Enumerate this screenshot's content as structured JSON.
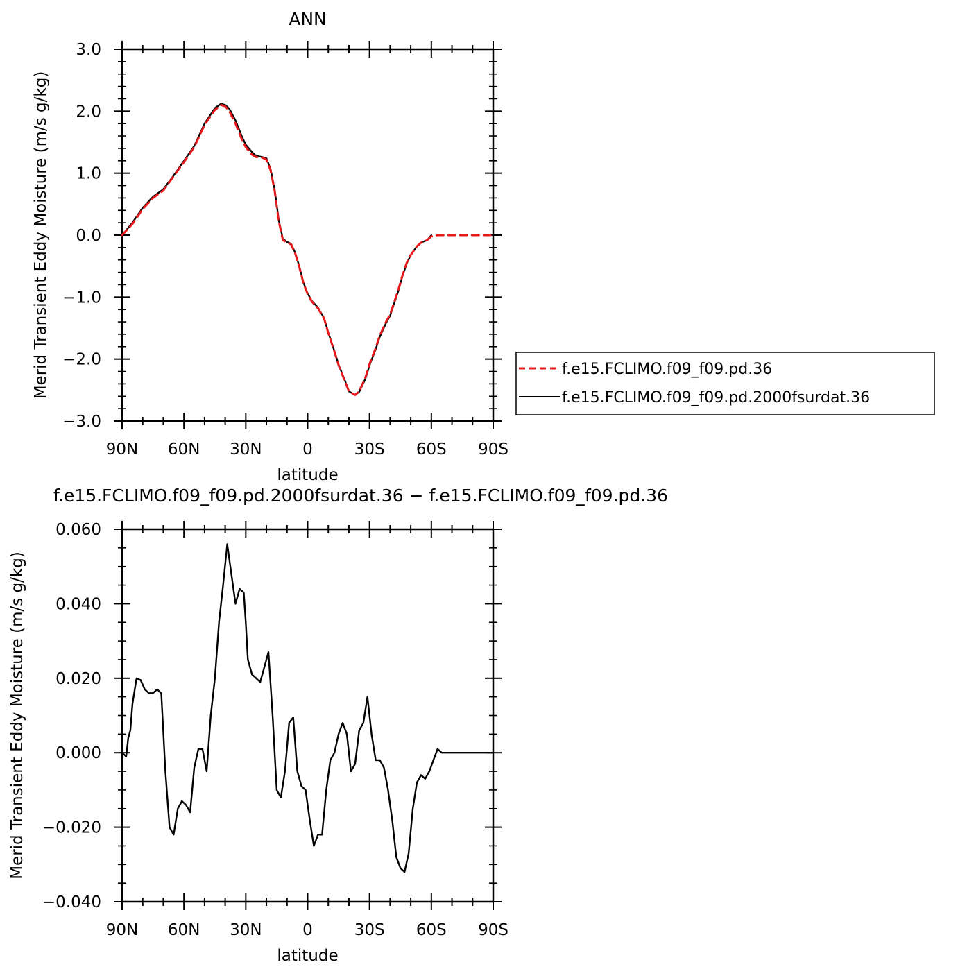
{
  "chart_data": [
    {
      "type": "line",
      "title": "ANN",
      "xlabel": "latitude",
      "ylabel": "Merid Transient Eddy Moisture (m/s g/kg)",
      "xlim": [
        90,
        -90
      ],
      "ylim": [
        -3.0,
        3.0
      ],
      "x_ticks": [
        90,
        60,
        30,
        0,
        -30,
        -60,
        -90
      ],
      "x_tick_labels": [
        "90N",
        "60N",
        "30N",
        "0",
        "30S",
        "60S",
        "90S"
      ],
      "y_ticks": [
        -3.0,
        -2.0,
        -1.0,
        0.0,
        1.0,
        2.0,
        3.0
      ],
      "y_tick_labels": [
        "−3.0",
        "−2.0",
        "−1.0",
        "0.0",
        "1.0",
        "2.0",
        "3.0"
      ],
      "grid": false,
      "legend_position": "right",
      "series": [
        {
          "name": "f.e15.FCLIMO.f09_f09.pd.36",
          "color": "#e8191c",
          "dash": "dashed",
          "x": [
            90,
            85,
            80,
            75,
            70,
            65,
            60,
            55,
            50,
            45,
            42,
            40,
            38,
            35,
            32,
            30,
            27,
            25,
            22,
            20,
            18,
            16,
            14,
            12,
            10,
            8,
            6,
            4,
            2,
            0,
            -2,
            -5,
            -8,
            -10,
            -13,
            -15,
            -18,
            -20,
            -23,
            -25,
            -28,
            -30,
            -33,
            -35,
            -38,
            -40,
            -42,
            -44,
            -46,
            -48,
            -50,
            -53,
            -55,
            -58,
            -60,
            -63,
            -65,
            -68,
            -70,
            -73,
            -75,
            -78,
            -80,
            -83,
            -85,
            -88,
            -90
          ],
          "values": [
            0.0,
            0.18,
            0.42,
            0.6,
            0.72,
            0.95,
            1.18,
            1.42,
            1.78,
            2.02,
            2.1,
            2.08,
            2.0,
            1.8,
            1.55,
            1.42,
            1.3,
            1.26,
            1.25,
            1.22,
            1.05,
            0.72,
            0.22,
            -0.08,
            -0.12,
            -0.15,
            -0.3,
            -0.52,
            -0.78,
            -0.95,
            -1.07,
            -1.18,
            -1.35,
            -1.58,
            -1.88,
            -2.1,
            -2.35,
            -2.52,
            -2.58,
            -2.52,
            -2.3,
            -2.08,
            -1.82,
            -1.62,
            -1.4,
            -1.28,
            -1.08,
            -0.88,
            -0.65,
            -0.45,
            -0.32,
            -0.18,
            -0.12,
            -0.08,
            -0.02,
            0.0,
            0.0,
            0.0,
            0.0,
            0.0,
            0.0,
            0.0,
            0.0,
            0.0,
            0.0,
            0.0,
            0.0
          ]
        },
        {
          "name": "f.e15.FCLIMO.f09_f09.pd.2000fsurdat.36",
          "color": "#000000",
          "dash": "solid",
          "x": [
            90,
            85,
            80,
            75,
            70,
            65,
            60,
            55,
            50,
            45,
            42,
            40,
            38,
            35,
            32,
            30,
            27,
            25,
            22,
            20,
            18,
            16,
            14,
            12,
            10,
            8,
            6,
            4,
            2,
            0,
            -2,
            -5,
            -8,
            -10,
            -13,
            -15,
            -18,
            -20,
            -23,
            -25,
            -28,
            -30,
            -33,
            -35,
            -38,
            -40,
            -42,
            -44,
            -46,
            -48,
            -50,
            -53,
            -55,
            -58,
            -60
          ],
          "values": [
            0.0,
            0.2,
            0.44,
            0.62,
            0.74,
            0.96,
            1.2,
            1.44,
            1.8,
            2.05,
            2.12,
            2.1,
            2.04,
            1.85,
            1.6,
            1.46,
            1.34,
            1.28,
            1.26,
            1.24,
            1.07,
            0.74,
            0.24,
            -0.06,
            -0.11,
            -0.14,
            -0.29,
            -0.51,
            -0.77,
            -0.94,
            -1.06,
            -1.17,
            -1.34,
            -1.57,
            -1.87,
            -2.09,
            -2.34,
            -2.52,
            -2.58,
            -2.53,
            -2.32,
            -2.1,
            -1.84,
            -1.64,
            -1.42,
            -1.3,
            -1.1,
            -0.9,
            -0.66,
            -0.46,
            -0.32,
            -0.18,
            -0.12,
            -0.08,
            0.0
          ]
        }
      ]
    },
    {
      "type": "line",
      "title": "f.e15.FCLIMO.f09_f09.pd.2000fsurdat.36 − f.e15.FCLIMO.f09_f09.pd.36",
      "xlabel": "latitude",
      "ylabel": "Merid Transient Eddy Moisture (m/s g/kg)",
      "xlim": [
        90,
        -90
      ],
      "ylim": [
        -0.04,
        0.06
      ],
      "x_ticks": [
        90,
        60,
        30,
        0,
        -30,
        -60,
        -90
      ],
      "x_tick_labels": [
        "90N",
        "60N",
        "30N",
        "0",
        "30S",
        "60S",
        "90S"
      ],
      "y_ticks": [
        -0.04,
        -0.02,
        0.0,
        0.02,
        0.04,
        0.06
      ],
      "y_tick_labels": [
        "−0.040",
        "−0.020",
        "0.000",
        "0.020",
        "0.040",
        "0.060"
      ],
      "grid": false,
      "series": [
        {
          "color": "#000000",
          "dash": "solid",
          "x": [
            90,
            88,
            87,
            86,
            85,
            83,
            81,
            79,
            77,
            75,
            73,
            71,
            69,
            67,
            65,
            63,
            61,
            59,
            57,
            55,
            53,
            51,
            49,
            47,
            45,
            43,
            41,
            39,
            37,
            35,
            33,
            31,
            30,
            29,
            27,
            25,
            23,
            21,
            19,
            17,
            15,
            13,
            11,
            9,
            7,
            5,
            3,
            1,
            -1,
            -3,
            -5,
            -7,
            -9,
            -11,
            -13,
            -15,
            -17,
            -19,
            -21,
            -23,
            -25,
            -27,
            -29,
            -31,
            -33,
            -35,
            -37,
            -39,
            -41,
            -43,
            -45,
            -47,
            -49,
            -51,
            -53,
            -55,
            -57,
            -59,
            -61,
            -63,
            -65,
            -67,
            -69,
            -71,
            -73,
            -75,
            -77,
            -79,
            -81,
            -83,
            -85,
            -87,
            -89,
            -90
          ],
          "values": [
            0.0,
            -0.001,
            0.004,
            0.006,
            0.013,
            0.02,
            0.0195,
            0.017,
            0.016,
            0.016,
            0.017,
            0.016,
            -0.005,
            -0.02,
            -0.022,
            -0.015,
            -0.013,
            -0.014,
            -0.016,
            -0.004,
            0.001,
            0.001,
            -0.005,
            0.01,
            0.02,
            0.035,
            0.045,
            0.056,
            0.048,
            0.04,
            0.044,
            0.043,
            0.035,
            0.025,
            0.021,
            0.02,
            0.019,
            0.023,
            0.027,
            0.01,
            -0.01,
            -0.012,
            -0.005,
            0.008,
            0.0095,
            -0.005,
            -0.009,
            -0.01,
            -0.018,
            -0.025,
            -0.022,
            -0.022,
            -0.01,
            -0.002,
            0.0,
            0.005,
            0.008,
            0.005,
            -0.005,
            -0.003,
            0.006,
            0.008,
            0.015,
            0.005,
            -0.002,
            -0.002,
            -0.004,
            -0.01,
            -0.018,
            -0.028,
            -0.031,
            -0.032,
            -0.027,
            -0.015,
            -0.008,
            -0.006,
            -0.007,
            -0.005,
            -0.002,
            0.001,
            0.0,
            0.0,
            0.0,
            0.0,
            0.0,
            0.0,
            0.0,
            0.0,
            0.0,
            0.0,
            0.0,
            0.0,
            0.0,
            0.0
          ]
        }
      ]
    }
  ]
}
